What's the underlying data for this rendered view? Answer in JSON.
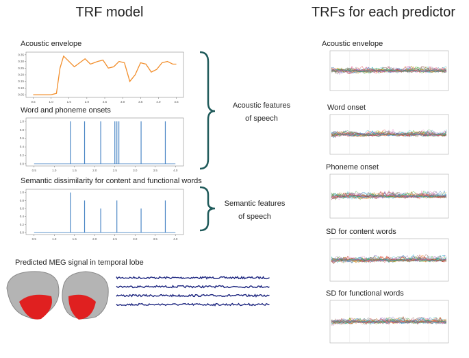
{
  "left_title": "TRF model",
  "right_title": "TRFs for each predictor",
  "panels": [
    {
      "label": "Acoustic envelope",
      "chart": {
        "type": "line",
        "color": "#f28e2b",
        "x": [
          0.5,
          1.0,
          1.15,
          1.25,
          1.35,
          1.5,
          1.65,
          1.8,
          1.95,
          2.1,
          2.3,
          2.45,
          2.6,
          2.75,
          2.9,
          3.05,
          3.2,
          3.35,
          3.5,
          3.65,
          3.8,
          3.95,
          4.1,
          4.25,
          4.4,
          4.5
        ],
        "values": [
          0.05,
          0.05,
          0.06,
          0.25,
          0.34,
          0.3,
          0.26,
          0.29,
          0.32,
          0.28,
          0.3,
          0.31,
          0.25,
          0.26,
          0.3,
          0.29,
          0.15,
          0.2,
          0.29,
          0.28,
          0.22,
          0.24,
          0.29,
          0.3,
          0.28,
          0.28
        ],
        "xlim": [
          0.3,
          4.7
        ],
        "ylim": [
          0.03,
          0.37
        ],
        "xticks": [
          0.5,
          {
            "value": 1,
            "label": "1.0"
          },
          1.5,
          {
            "value": 2,
            "label": "2.0"
          },
          2.5,
          {
            "value": 3,
            "label": "3.0"
          },
          3.5,
          {
            "value": 4,
            "label": "4.0"
          },
          4.5
        ],
        "yticks": [
          0.05,
          {
            "value": 0.1,
            "label": "0.10"
          },
          0.15,
          {
            "value": 0.2,
            "label": "0.20"
          },
          0.25,
          {
            "value": 0.3,
            "label": "0.30"
          },
          0.35
        ]
      }
    },
    {
      "label": "Word and phoneme onsets",
      "chart": {
        "type": "spikes",
        "color": "#4a86c5",
        "x": [
          1.4,
          1.75,
          2.15,
          2.5,
          2.55,
          2.6,
          3.15,
          3.75
        ],
        "values": [
          1,
          1,
          1,
          1,
          1,
          1,
          1,
          1
        ],
        "xlim": [
          0.3,
          4.2
        ],
        "ylim": [
          -0.05,
          1.08
        ],
        "xticks": [
          0.5,
          {
            "value": 1,
            "label": "1.0"
          },
          1.5,
          {
            "value": 2,
            "label": "2.0"
          },
          2.5,
          {
            "value": 3,
            "label": "3.0"
          },
          3.5,
          {
            "value": 4,
            "label": "4.0"
          }
        ],
        "yticks": [
          {
            "value": 0,
            "label": "0.0"
          },
          0.2,
          0.4,
          0.6,
          0.8,
          {
            "value": 1,
            "label": "1.0"
          }
        ]
      }
    },
    {
      "label": "Semantic dissimilarity for content and functional words",
      "chart": {
        "type": "spikes",
        "color": "#4a86c5",
        "x": [
          1.4,
          1.75,
          2.15,
          2.55,
          3.15,
          3.75
        ],
        "values": [
          1,
          0.8,
          0.6,
          0.8,
          0.6,
          0.8
        ],
        "xlim": [
          0.3,
          4.2
        ],
        "ylim": [
          -0.05,
          1.08
        ],
        "xticks": [
          0.5,
          {
            "value": 1,
            "label": "1.0"
          },
          1.5,
          {
            "value": 2,
            "label": "2.0"
          },
          2.5,
          {
            "value": 3,
            "label": "3.0"
          },
          3.5,
          {
            "value": 4,
            "label": "4.0"
          }
        ],
        "yticks": [
          {
            "value": 0,
            "label": "0.0"
          },
          0.2,
          0.4,
          0.6,
          0.8,
          {
            "value": 1,
            "label": "1.0"
          }
        ]
      }
    }
  ],
  "brace_labels": [
    [
      "Acoustic features",
      "of speech"
    ],
    [
      "Semantic features",
      "of speech"
    ]
  ],
  "meg_label": "Predicted MEG signal in temporal lobe",
  "trf_labels": [
    "Acoustic envelope",
    "Word onset",
    "Phoneme onset",
    "SD for content words",
    "SD for functional words"
  ]
}
